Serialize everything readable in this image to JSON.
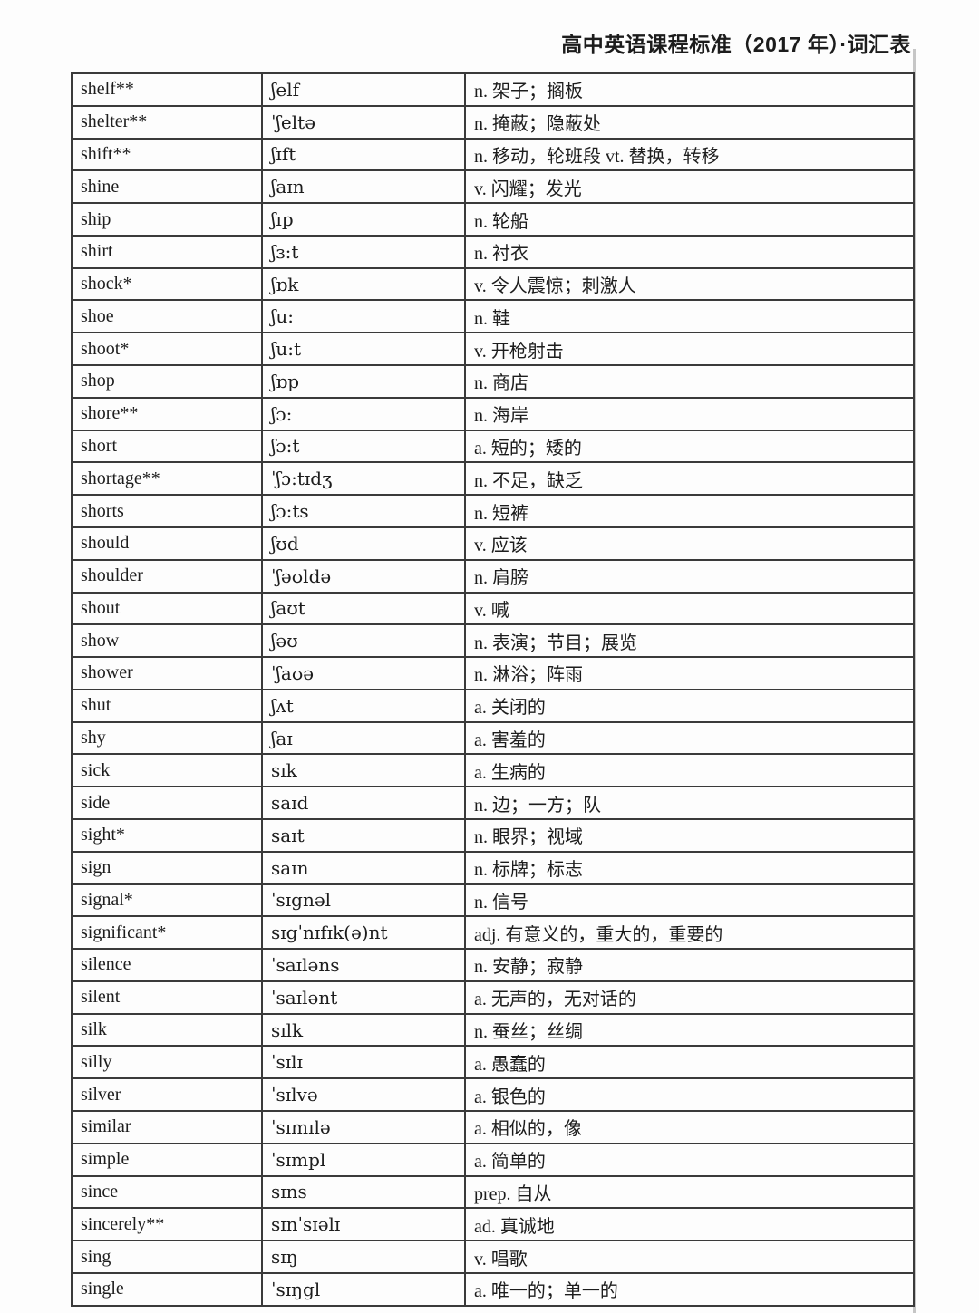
{
  "page": {
    "header_title": "高中英语课程标准（2017 年）·词汇表"
  },
  "table": {
    "columns": [
      "word",
      "phonetic",
      "definition"
    ],
    "rows": [
      {
        "word": "shelf**",
        "phonetic": "ʃelf",
        "definition": "n. 架子；搁板"
      },
      {
        "word": "shelter**",
        "phonetic": "ˈʃeltə",
        "definition": "n. 掩蔽；隐蔽处"
      },
      {
        "word": "shift**",
        "phonetic": "ʃɪft",
        "definition": "n. 移动，轮班段 vt. 替换，转移"
      },
      {
        "word": "shine",
        "phonetic": "ʃaɪn",
        "definition": "v. 闪耀；发光"
      },
      {
        "word": "ship",
        "phonetic": "ʃɪp",
        "definition": "n. 轮船"
      },
      {
        "word": "shirt",
        "phonetic": "ʃɜ:t",
        "definition": "n. 衬衣"
      },
      {
        "word": "shock*",
        "phonetic": "ʃɒk",
        "definition": "v. 令人震惊；刺激人"
      },
      {
        "word": "shoe",
        "phonetic": "ʃu:",
        "definition": "n. 鞋"
      },
      {
        "word": "shoot*",
        "phonetic": "ʃu:t",
        "definition": "v. 开枪射击"
      },
      {
        "word": "shop",
        "phonetic": "ʃɒp",
        "definition": "n. 商店"
      },
      {
        "word": "shore**",
        "phonetic": "ʃɔ:",
        "definition": "n. 海岸"
      },
      {
        "word": "short",
        "phonetic": "ʃɔ:t",
        "definition": "a. 短的；矮的"
      },
      {
        "word": "shortage**",
        "phonetic": "ˈʃɔ:tɪdʒ",
        "definition": "n. 不足，缺乏"
      },
      {
        "word": "shorts",
        "phonetic": "ʃɔ:ts",
        "definition": "n. 短裤"
      },
      {
        "word": "should",
        "phonetic": "ʃʊd",
        "definition": "v. 应该"
      },
      {
        "word": "shoulder",
        "phonetic": "ˈʃəʊldə",
        "definition": "n. 肩膀"
      },
      {
        "word": "shout",
        "phonetic": "ʃaʊt",
        "definition": "v. 喊"
      },
      {
        "word": "show",
        "phonetic": "ʃəʊ",
        "definition": "n. 表演；节目；展览"
      },
      {
        "word": "shower",
        "phonetic": "ˈʃaʊə",
        "definition": "n. 淋浴；阵雨"
      },
      {
        "word": "shut",
        "phonetic": "ʃʌt",
        "definition": "a. 关闭的"
      },
      {
        "word": "shy",
        "phonetic": "ʃaɪ",
        "definition": "a. 害羞的"
      },
      {
        "word": "sick",
        "phonetic": "sɪk",
        "definition": "a. 生病的"
      },
      {
        "word": "side",
        "phonetic": "saɪd",
        "definition": "n. 边；一方；队"
      },
      {
        "word": "sight*",
        "phonetic": "saɪt",
        "definition": "n. 眼界；视域"
      },
      {
        "word": "sign",
        "phonetic": "saɪn",
        "definition": "n. 标牌；标志"
      },
      {
        "word": "signal*",
        "phonetic": "ˈsɪgnəl",
        "definition": "n. 信号"
      },
      {
        "word": "significant*",
        "phonetic": "sɪgˈnɪfɪk(ə)nt",
        "definition": "adj. 有意义的，重大的，重要的"
      },
      {
        "word": "silence",
        "phonetic": "ˈsaɪləns",
        "definition": "n. 安静；寂静"
      },
      {
        "word": "silent",
        "phonetic": "ˈsaɪlənt",
        "definition": "a. 无声的，无对话的"
      },
      {
        "word": "silk",
        "phonetic": "sɪlk",
        "definition": "n. 蚕丝；丝绸"
      },
      {
        "word": "silly",
        "phonetic": "ˈsɪlɪ",
        "definition": "a. 愚蠢的"
      },
      {
        "word": "silver",
        "phonetic": "ˈsɪlvə",
        "definition": "a. 银色的"
      },
      {
        "word": "similar",
        "phonetic": "ˈsɪmɪlə",
        "definition": "a. 相似的，像"
      },
      {
        "word": "simple",
        "phonetic": "ˈsɪmpl",
        "definition": "a. 简单的"
      },
      {
        "word": "since",
        "phonetic": "sɪns",
        "definition": "prep. 自从"
      },
      {
        "word": "sincerely**",
        "phonetic": "sɪnˈsɪəlɪ",
        "definition": "ad. 真诚地"
      },
      {
        "word": "sing",
        "phonetic": "sɪŋ",
        "definition": "v. 唱歌"
      },
      {
        "word": "single",
        "phonetic": "ˈsɪŋgl",
        "definition": "a. 唯一的；单一的"
      }
    ]
  }
}
